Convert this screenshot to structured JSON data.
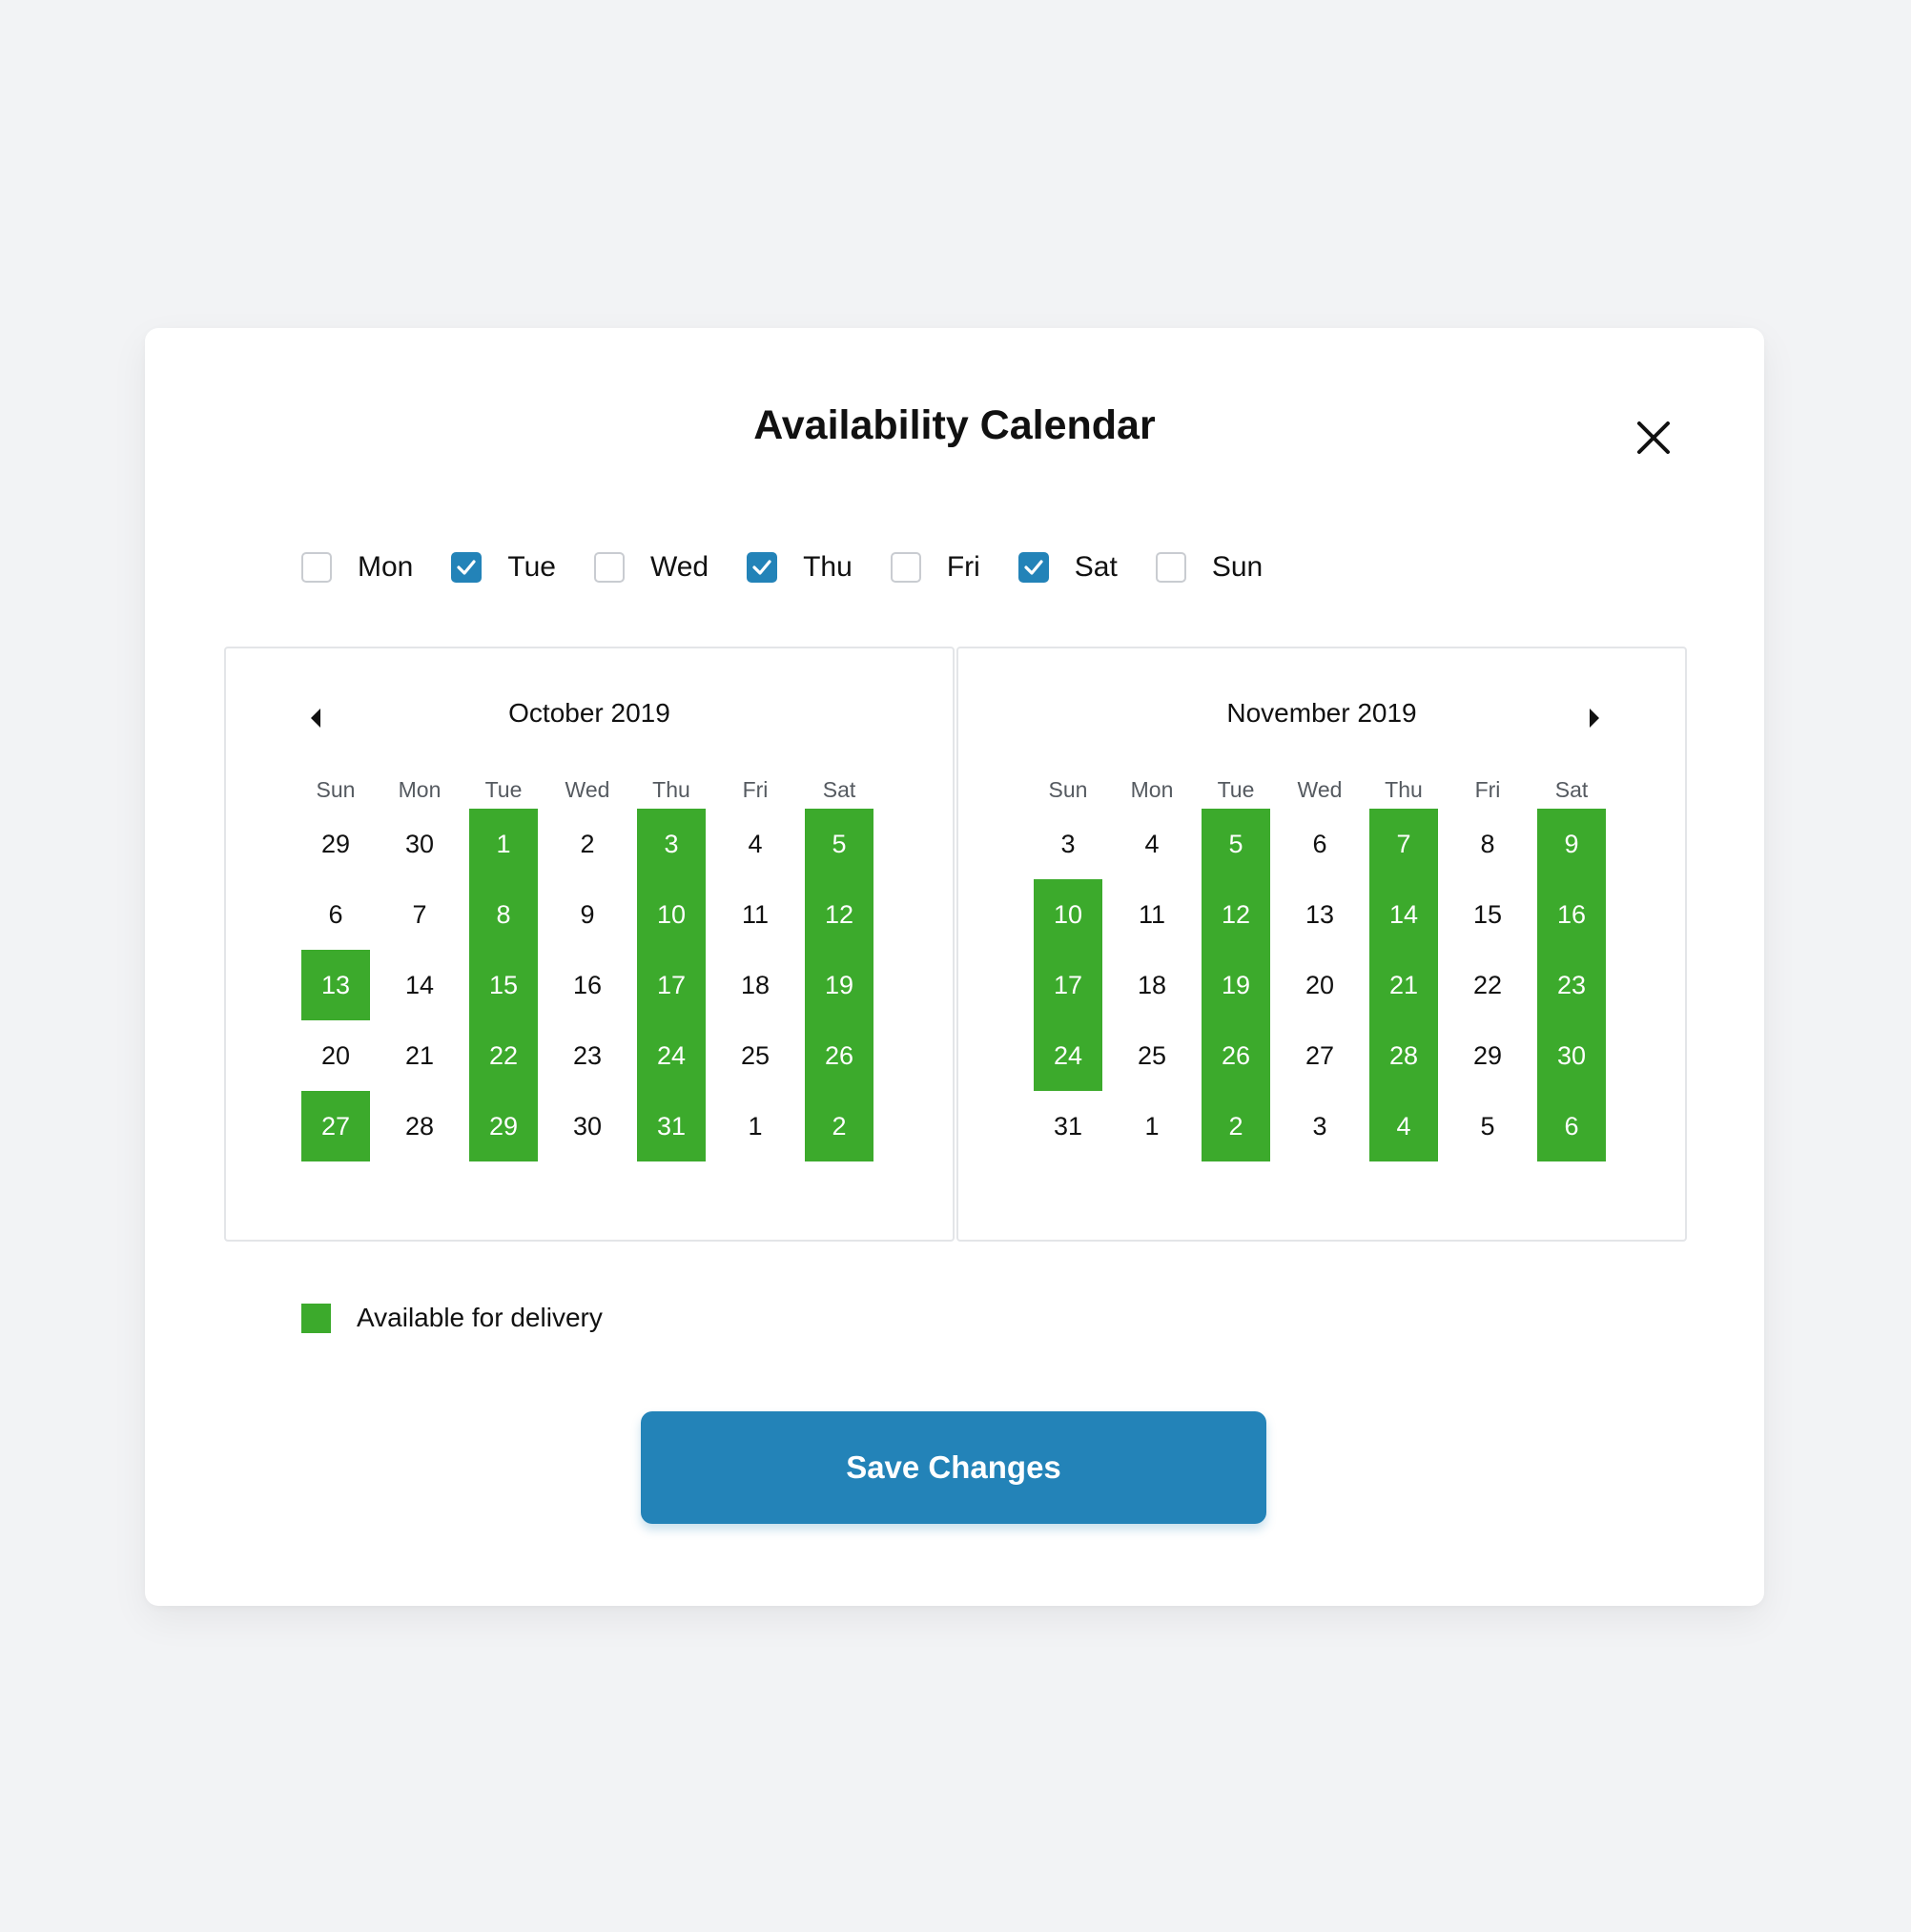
{
  "modal": {
    "title": "Availability Calendar"
  },
  "weekday_filters": [
    {
      "label": "Mon",
      "checked": false
    },
    {
      "label": "Tue",
      "checked": true
    },
    {
      "label": "Wed",
      "checked": false
    },
    {
      "label": "Thu",
      "checked": true
    },
    {
      "label": "Fri",
      "checked": false
    },
    {
      "label": "Sat",
      "checked": true
    },
    {
      "label": "Sun",
      "checked": false
    }
  ],
  "calendars": [
    {
      "month": "October 2019",
      "dow": [
        "Sun",
        "Mon",
        "Tue",
        "Wed",
        "Thu",
        "Fri",
        "Sat"
      ],
      "weeks": [
        [
          "29",
          "30",
          "1",
          "2",
          "3",
          "4",
          "5"
        ],
        [
          "6",
          "7",
          "8",
          "9",
          "10",
          "11",
          "12"
        ],
        [
          "13",
          "14",
          "15",
          "16",
          "17",
          "18",
          "19"
        ],
        [
          "20",
          "21",
          "22",
          "23",
          "24",
          "25",
          "26"
        ],
        [
          "27",
          "28",
          "29",
          "30",
          "31",
          "1",
          "2"
        ]
      ],
      "available": [
        [
          false,
          false,
          true,
          false,
          true,
          false,
          true
        ],
        [
          false,
          false,
          true,
          false,
          true,
          false,
          true
        ],
        [
          true,
          false,
          true,
          false,
          true,
          false,
          true
        ],
        [
          false,
          false,
          true,
          false,
          true,
          false,
          true
        ],
        [
          true,
          false,
          true,
          false,
          true,
          false,
          true
        ]
      ]
    },
    {
      "month": "November 2019",
      "dow": [
        "Sun",
        "Mon",
        "Tue",
        "Wed",
        "Thu",
        "Fri",
        "Sat"
      ],
      "weeks": [
        [
          "3",
          "4",
          "5",
          "6",
          "7",
          "8",
          "9"
        ],
        [
          "10",
          "11",
          "12",
          "13",
          "14",
          "15",
          "16"
        ],
        [
          "17",
          "18",
          "19",
          "20",
          "21",
          "22",
          "23"
        ],
        [
          "24",
          "25",
          "26",
          "27",
          "28",
          "29",
          "30"
        ],
        [
          "31",
          "1",
          "2",
          "3",
          "4",
          "5",
          "6"
        ]
      ],
      "available": [
        [
          false,
          false,
          true,
          false,
          true,
          false,
          true
        ],
        [
          true,
          false,
          true,
          false,
          true,
          false,
          true
        ],
        [
          true,
          false,
          true,
          false,
          true,
          false,
          true
        ],
        [
          true,
          false,
          true,
          false,
          true,
          false,
          true
        ],
        [
          false,
          false,
          true,
          false,
          true,
          false,
          true
        ]
      ]
    }
  ],
  "legend": {
    "label": "Available for delivery",
    "color": "#3caa2c"
  },
  "actions": {
    "save_label": "Save Changes"
  },
  "colors": {
    "accent": "#2383b8",
    "available": "#3caa2c",
    "background": "#f2f3f5"
  },
  "icons": {
    "close": "close-icon",
    "checkmark": "checkmark-icon",
    "prev": "chevron-left-icon",
    "next": "chevron-right-icon"
  }
}
